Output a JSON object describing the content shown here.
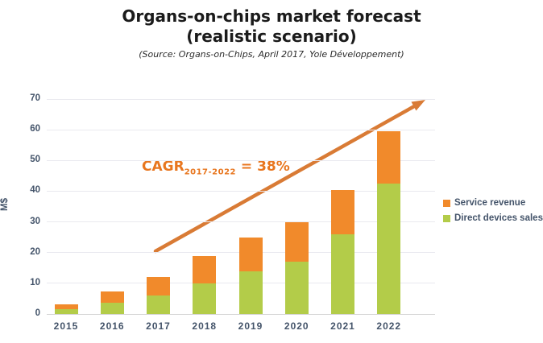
{
  "title": {
    "line1": "Organs-on-chips market forecast",
    "line2": "(realistic scenario)",
    "source": "(Source: Organs-on-Chips, April 2017, Yole Développement)"
  },
  "annotation": {
    "cagr_prefix": "CAGR",
    "cagr_subscript": "2017-2022",
    "cagr_suffix": " = 38%"
  },
  "legend": [
    {
      "label": "Service revenue",
      "color": "#f18a2b"
    },
    {
      "label": "Direct devices sales",
      "color": "#b3cc49"
    }
  ],
  "colors": {
    "service_revenue": "#f18a2b",
    "direct_devices_sales": "#b3cc49",
    "arrow": "#d97b35",
    "cagr_text": "#e8761f",
    "axis_text": "#44546a",
    "gridline": "#e9e9ef"
  },
  "chart_data": {
    "type": "bar",
    "stacked": true,
    "title": "Organs-on-chips market forecast (realistic scenario)",
    "subtitle": "(Source: Organs-on-Chips, April 2017, Yole Développement)",
    "categories": [
      "2015",
      "2016",
      "2017",
      "2018",
      "2019",
      "2020",
      "2021",
      "2022"
    ],
    "series": [
      {
        "name": "Direct devices sales",
        "color": "#b3cc49",
        "values": [
          1.5,
          3.7,
          6,
          10,
          14,
          17,
          26,
          42.5
        ]
      },
      {
        "name": "Service revenue",
        "color": "#f18a2b",
        "values": [
          1.7,
          3.6,
          6,
          9,
          11,
          13,
          14.5,
          17
        ]
      }
    ],
    "totals": [
      3.2,
      7.3,
      12,
      19,
      25,
      30,
      40.5,
      59.5
    ],
    "xlabel": "",
    "ylabel": "M$",
    "ylim": [
      0,
      70
    ],
    "yticks": [
      0,
      10,
      20,
      30,
      40,
      50,
      60,
      70
    ],
    "grid": true,
    "legend_position": "right",
    "annotation": "CAGR 2017-2022 = 38%"
  }
}
